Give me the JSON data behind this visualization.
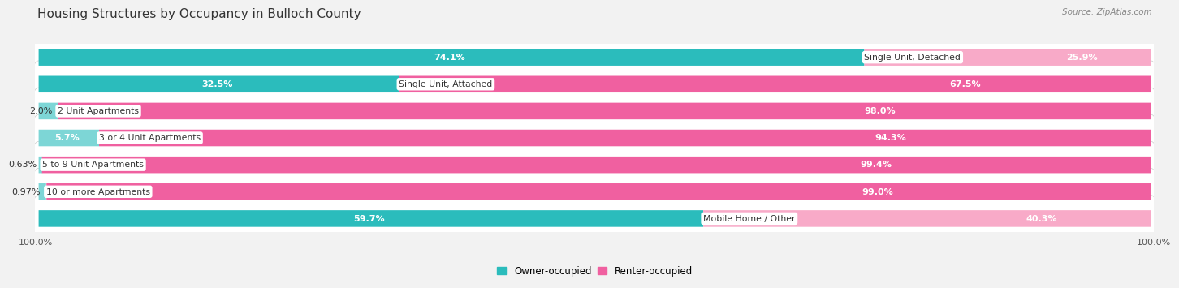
{
  "title": "Housing Structures by Occupancy in Bulloch County",
  "source": "Source: ZipAtlas.com",
  "categories": [
    "Single Unit, Detached",
    "Single Unit, Attached",
    "2 Unit Apartments",
    "3 or 4 Unit Apartments",
    "5 to 9 Unit Apartments",
    "10 or more Apartments",
    "Mobile Home / Other"
  ],
  "owner_pct": [
    74.1,
    32.5,
    2.0,
    5.7,
    0.63,
    0.97,
    59.7
  ],
  "renter_pct": [
    25.9,
    67.5,
    98.0,
    94.3,
    99.4,
    99.0,
    40.3
  ],
  "owner_color_dark": "#2bbcbc",
  "owner_color_light": "#7dd6d6",
  "renter_color_dark": "#f060a0",
  "renter_color_light": "#f8aac8",
  "row_bg_color": "#e8e8e8",
  "bg_color": "#f2f2f2",
  "bar_height": 0.62,
  "title_fontsize": 11,
  "label_fontsize": 8.0,
  "cat_fontsize": 7.8,
  "axis_label_fontsize": 8,
  "legend_fontsize": 8.5,
  "source_fontsize": 7.5
}
